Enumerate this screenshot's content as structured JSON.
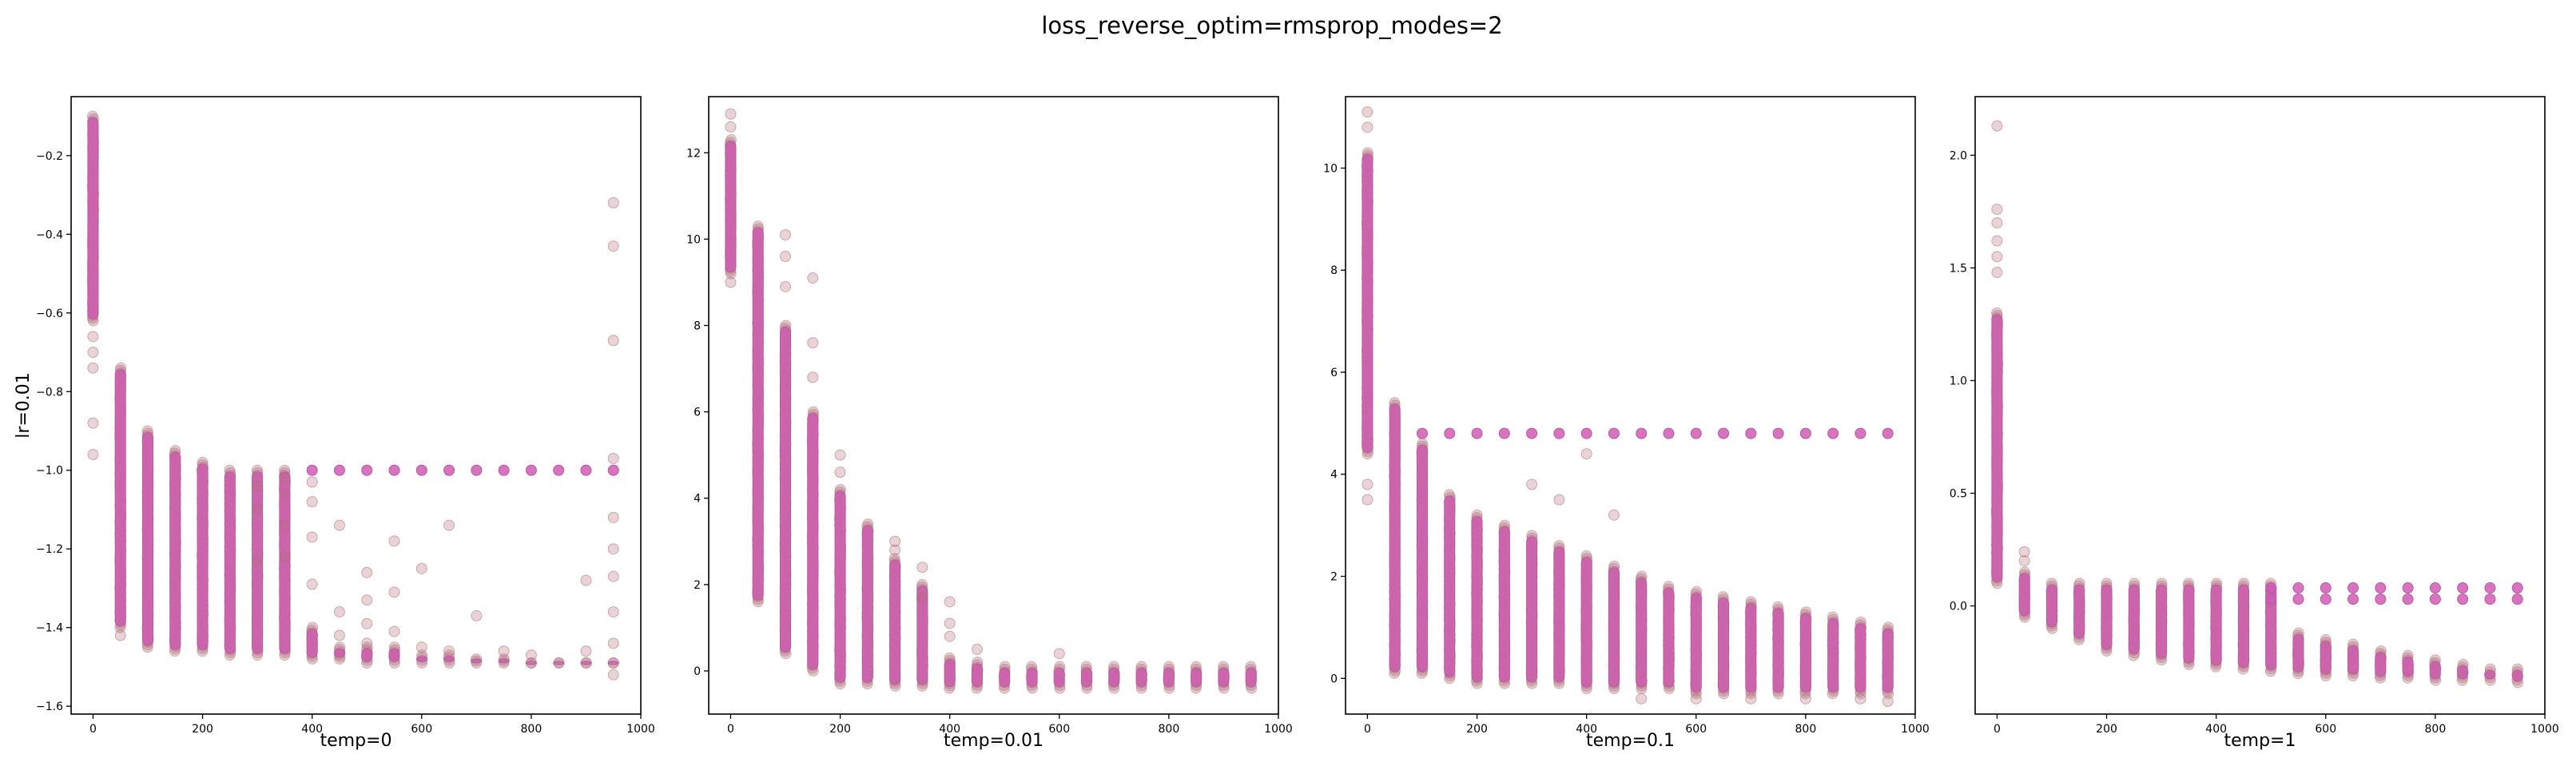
{
  "figure": {
    "suptitle": "loss_reverse_optim=rmsprop_modes=2",
    "row_label": "lr=0.01"
  },
  "style": {
    "marker_fill": "#b2707a",
    "marker_edge": "#b06e78",
    "mean_marker_fill": "#d05ab4",
    "mean_marker_edge": "#b85aa0"
  },
  "chart_data": [
    {
      "type": "scatter",
      "xlabel": "temp=0",
      "ylabel": "lr=0.01",
      "xlim": [
        -40,
        1000
      ],
      "ylim": [
        -1.62,
        -0.05
      ],
      "xticks": [
        0,
        200,
        400,
        600,
        800,
        1000
      ],
      "yticks": [
        -1.6,
        -1.4,
        -1.2,
        -1.0,
        -0.8,
        -0.6,
        -0.4,
        -0.2
      ],
      "ytick_labels": [
        "−1.6",
        "−1.4",
        "−1.2",
        "−1.0",
        "−0.8",
        "−0.6",
        "−0.4",
        "−0.2"
      ],
      "x_steps": [
        0,
        50,
        100,
        150,
        200,
        250,
        300,
        350,
        400,
        450,
        500,
        550,
        600,
        650,
        700,
        750,
        800,
        850,
        900,
        950
      ],
      "band_low": [
        -0.62,
        -1.4,
        -1.45,
        -1.46,
        -1.46,
        -1.47,
        -1.47,
        -1.47,
        -1.48,
        -1.48,
        -1.49,
        -1.49,
        -1.49,
        -1.49,
        -1.49,
        -1.49,
        -1.49,
        -1.49,
        -1.49,
        -1.49
      ],
      "band_high": [
        -0.1,
        -0.74,
        -0.9,
        -0.95,
        -0.98,
        -1.0,
        -1.0,
        -1.0,
        -1.4,
        -1.45,
        -1.45,
        -1.45,
        -1.47,
        -1.47,
        -1.48,
        -1.48,
        -1.49,
        -1.49,
        -1.49,
        -1.49
      ],
      "mode_points": [
        {
          "x": 400,
          "y": -1.0
        },
        {
          "x": 450,
          "y": -1.0
        },
        {
          "x": 500,
          "y": -1.0
        },
        {
          "x": 550,
          "y": -1.0
        },
        {
          "x": 600,
          "y": -1.0
        },
        {
          "x": 650,
          "y": -1.0
        },
        {
          "x": 700,
          "y": -1.0
        },
        {
          "x": 750,
          "y": -1.0
        },
        {
          "x": 800,
          "y": -1.0
        },
        {
          "x": 850,
          "y": -1.0
        },
        {
          "x": 900,
          "y": -1.0
        },
        {
          "x": 950,
          "y": -1.0
        }
      ],
      "outliers": [
        {
          "x": 0,
          "y": -0.96
        },
        {
          "x": 0,
          "y": -0.88
        },
        {
          "x": 0,
          "y": -0.74
        },
        {
          "x": 0,
          "y": -0.7
        },
        {
          "x": 0,
          "y": -0.66
        },
        {
          "x": 50,
          "y": -1.42
        },
        {
          "x": 300,
          "y": -1.04
        },
        {
          "x": 300,
          "y": -1.1
        },
        {
          "x": 300,
          "y": -1.23
        },
        {
          "x": 350,
          "y": -1.02
        },
        {
          "x": 350,
          "y": -1.06
        },
        {
          "x": 350,
          "y": -1.14
        },
        {
          "x": 350,
          "y": -1.22
        },
        {
          "x": 400,
          "y": -1.03
        },
        {
          "x": 400,
          "y": -1.08
        },
        {
          "x": 400,
          "y": -1.17
        },
        {
          "x": 400,
          "y": -1.29
        },
        {
          "x": 450,
          "y": -1.14
        },
        {
          "x": 450,
          "y": -1.36
        },
        {
          "x": 450,
          "y": -1.42
        },
        {
          "x": 500,
          "y": -1.26
        },
        {
          "x": 500,
          "y": -1.33
        },
        {
          "x": 500,
          "y": -1.39
        },
        {
          "x": 500,
          "y": -1.44
        },
        {
          "x": 550,
          "y": -1.18
        },
        {
          "x": 550,
          "y": -1.31
        },
        {
          "x": 550,
          "y": -1.41
        },
        {
          "x": 600,
          "y": -1.25
        },
        {
          "x": 600,
          "y": -1.45
        },
        {
          "x": 650,
          "y": -1.14
        },
        {
          "x": 650,
          "y": -1.46
        },
        {
          "x": 700,
          "y": -1.37
        },
        {
          "x": 750,
          "y": -1.46
        },
        {
          "x": 800,
          "y": -1.47
        },
        {
          "x": 900,
          "y": -1.28
        },
        {
          "x": 900,
          "y": -1.46
        },
        {
          "x": 950,
          "y": -0.32
        },
        {
          "x": 950,
          "y": -0.43
        },
        {
          "x": 950,
          "y": -0.67
        },
        {
          "x": 950,
          "y": -0.97
        },
        {
          "x": 950,
          "y": -1.12
        },
        {
          "x": 950,
          "y": -1.2
        },
        {
          "x": 950,
          "y": -1.27
        },
        {
          "x": 950,
          "y": -1.36
        },
        {
          "x": 950,
          "y": -1.44
        },
        {
          "x": 950,
          "y": -1.52
        }
      ]
    },
    {
      "type": "scatter",
      "xlabel": "temp=0.01",
      "ylabel": "",
      "xlim": [
        -40,
        1000
      ],
      "ylim": [
        -1.0,
        13.3
      ],
      "xticks": [
        0,
        200,
        400,
        600,
        800,
        1000
      ],
      "yticks": [
        0,
        2,
        4,
        6,
        8,
        10,
        12
      ],
      "ytick_labels": [
        "0",
        "2",
        "4",
        "6",
        "8",
        "10",
        "12"
      ],
      "x_steps": [
        0,
        50,
        100,
        150,
        200,
        250,
        300,
        350,
        400,
        450,
        500,
        550,
        600,
        650,
        700,
        750,
        800,
        850,
        900,
        950
      ],
      "band_low": [
        9.2,
        1.6,
        0.4,
        0.0,
        -0.3,
        -0.3,
        -0.35,
        -0.35,
        -0.4,
        -0.4,
        -0.4,
        -0.4,
        -0.4,
        -0.4,
        -0.4,
        -0.4,
        -0.4,
        -0.4,
        -0.4,
        -0.4
      ],
      "band_high": [
        12.3,
        10.3,
        8.0,
        6.0,
        4.2,
        3.4,
        2.6,
        2.0,
        0.3,
        0.2,
        0.1,
        0.1,
        0.1,
        0.1,
        0.1,
        0.1,
        0.1,
        0.1,
        0.1,
        0.1
      ],
      "mode_points": [],
      "outliers": [
        {
          "x": 0,
          "y": 12.9
        },
        {
          "x": 0,
          "y": 12.6
        },
        {
          "x": 0,
          "y": 9.0
        },
        {
          "x": 100,
          "y": 10.1
        },
        {
          "x": 100,
          "y": 9.6
        },
        {
          "x": 100,
          "y": 8.9
        },
        {
          "x": 150,
          "y": 9.1
        },
        {
          "x": 150,
          "y": 7.6
        },
        {
          "x": 150,
          "y": 6.8
        },
        {
          "x": 200,
          "y": 5.0
        },
        {
          "x": 200,
          "y": 4.6
        },
        {
          "x": 300,
          "y": 3.0
        },
        {
          "x": 300,
          "y": 2.8
        },
        {
          "x": 350,
          "y": 2.4
        },
        {
          "x": 350,
          "y": 1.7
        },
        {
          "x": 400,
          "y": 1.6
        },
        {
          "x": 400,
          "y": 1.1
        },
        {
          "x": 400,
          "y": 0.8
        },
        {
          "x": 450,
          "y": 0.5
        },
        {
          "x": 600,
          "y": 0.4
        }
      ]
    },
    {
      "type": "scatter",
      "xlabel": "temp=0.1",
      "ylabel": "",
      "xlim": [
        -40,
        1000
      ],
      "ylim": [
        -0.7,
        11.4
      ],
      "xticks": [
        0,
        200,
        400,
        600,
        800,
        1000
      ],
      "yticks": [
        0,
        2,
        4,
        6,
        8,
        10
      ],
      "ytick_labels": [
        "0",
        "2",
        "4",
        "6",
        "8",
        "10"
      ],
      "x_steps": [
        0,
        50,
        100,
        150,
        200,
        250,
        300,
        350,
        400,
        450,
        500,
        550,
        600,
        650,
        700,
        750,
        800,
        850,
        900,
        950
      ],
      "band_low": [
        4.4,
        0.1,
        0.1,
        0.0,
        -0.1,
        -0.1,
        -0.1,
        -0.1,
        -0.2,
        -0.2,
        -0.2,
        -0.2,
        -0.3,
        -0.3,
        -0.3,
        -0.3,
        -0.3,
        -0.3,
        -0.3,
        -0.3
      ],
      "band_high": [
        10.3,
        5.4,
        4.6,
        3.6,
        3.2,
        3.0,
        2.8,
        2.6,
        2.4,
        2.2,
        2.0,
        1.8,
        1.7,
        1.6,
        1.5,
        1.4,
        1.3,
        1.2,
        1.1,
        1.0
      ],
      "mode_points": [
        {
          "x": 100,
          "y": 4.8
        },
        {
          "x": 150,
          "y": 4.8
        },
        {
          "x": 200,
          "y": 4.8
        },
        {
          "x": 250,
          "y": 4.8
        },
        {
          "x": 300,
          "y": 4.8
        },
        {
          "x": 350,
          "y": 4.8
        },
        {
          "x": 400,
          "y": 4.8
        },
        {
          "x": 450,
          "y": 4.8
        },
        {
          "x": 500,
          "y": 4.8
        },
        {
          "x": 550,
          "y": 4.8
        },
        {
          "x": 600,
          "y": 4.8
        },
        {
          "x": 650,
          "y": 4.8
        },
        {
          "x": 700,
          "y": 4.8
        },
        {
          "x": 750,
          "y": 4.8
        },
        {
          "x": 800,
          "y": 4.8
        },
        {
          "x": 850,
          "y": 4.8
        },
        {
          "x": 900,
          "y": 4.8
        },
        {
          "x": 950,
          "y": 4.8
        }
      ],
      "outliers": [
        {
          "x": 0,
          "y": 11.1
        },
        {
          "x": 0,
          "y": 10.8
        },
        {
          "x": 0,
          "y": 3.5
        },
        {
          "x": 0,
          "y": 3.8
        },
        {
          "x": 400,
          "y": 4.4
        },
        {
          "x": 450,
          "y": 3.2
        },
        {
          "x": 300,
          "y": 3.8
        },
        {
          "x": 350,
          "y": 3.5
        },
        {
          "x": 500,
          "y": -0.4
        },
        {
          "x": 600,
          "y": -0.4
        },
        {
          "x": 700,
          "y": -0.4
        },
        {
          "x": 800,
          "y": -0.4
        },
        {
          "x": 900,
          "y": -0.4
        },
        {
          "x": 950,
          "y": -0.45
        }
      ]
    },
    {
      "type": "scatter",
      "xlabel": "temp=1",
      "ylabel": "",
      "xlim": [
        -40,
        1000
      ],
      "ylim": [
        -0.48,
        2.26
      ],
      "xticks": [
        0,
        200,
        400,
        600,
        800,
        1000
      ],
      "yticks": [
        0.0,
        0.5,
        1.0,
        1.5,
        2.0
      ],
      "ytick_labels": [
        "0.0",
        "0.5",
        "1.0",
        "1.5",
        "2.0"
      ],
      "x_steps": [
        0,
        50,
        100,
        150,
        200,
        250,
        300,
        350,
        400,
        450,
        500,
        550,
        600,
        650,
        700,
        750,
        800,
        850,
        900,
        950
      ],
      "band_low": [
        0.1,
        -0.05,
        -0.1,
        -0.15,
        -0.2,
        -0.22,
        -0.24,
        -0.26,
        -0.27,
        -0.28,
        -0.29,
        -0.3,
        -0.31,
        -0.31,
        -0.32,
        -0.32,
        -0.33,
        -0.33,
        -0.33,
        -0.34
      ],
      "band_high": [
        1.3,
        0.15,
        0.1,
        0.1,
        0.1,
        0.1,
        0.1,
        0.1,
        0.1,
        0.1,
        0.1,
        -0.12,
        -0.15,
        -0.17,
        -0.2,
        -0.22,
        -0.24,
        -0.26,
        -0.28,
        -0.28
      ],
      "mode_points": [
        {
          "x": 500,
          "y": 0.08
        },
        {
          "x": 550,
          "y": 0.08
        },
        {
          "x": 600,
          "y": 0.08
        },
        {
          "x": 650,
          "y": 0.08
        },
        {
          "x": 700,
          "y": 0.08
        },
        {
          "x": 750,
          "y": 0.08
        },
        {
          "x": 800,
          "y": 0.08
        },
        {
          "x": 850,
          "y": 0.08
        },
        {
          "x": 900,
          "y": 0.08
        },
        {
          "x": 950,
          "y": 0.08
        },
        {
          "x": 500,
          "y": 0.03
        },
        {
          "x": 550,
          "y": 0.03
        },
        {
          "x": 600,
          "y": 0.03
        },
        {
          "x": 650,
          "y": 0.03
        },
        {
          "x": 700,
          "y": 0.03
        },
        {
          "x": 750,
          "y": 0.03
        },
        {
          "x": 800,
          "y": 0.03
        },
        {
          "x": 850,
          "y": 0.03
        },
        {
          "x": 900,
          "y": 0.03
        },
        {
          "x": 950,
          "y": 0.03
        }
      ],
      "outliers": [
        {
          "x": 0,
          "y": 2.13
        },
        {
          "x": 0,
          "y": 1.76
        },
        {
          "x": 0,
          "y": 1.7
        },
        {
          "x": 0,
          "y": 1.62
        },
        {
          "x": 0,
          "y": 1.55
        },
        {
          "x": 0,
          "y": 1.48
        },
        {
          "x": 50,
          "y": 0.24
        },
        {
          "x": 50,
          "y": 0.2
        }
      ]
    }
  ]
}
